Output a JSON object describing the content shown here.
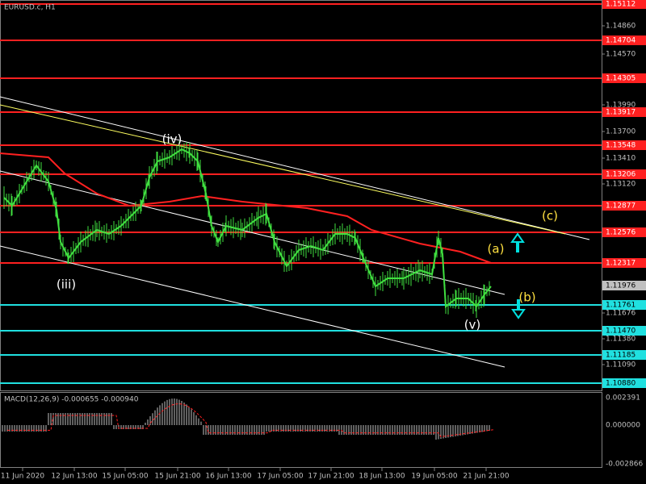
{
  "window_title": "EURUSD.c, H1",
  "price_axis_labels": [
    "1.14860",
    "1.14570",
    "1.13990",
    "1.13700",
    "1.13410",
    "1.13120",
    "1.11676",
    "1.11380",
    "1.11090"
  ],
  "current_price": "1.11976",
  "red_levels": [
    "1.15112",
    "1.14704",
    "1.14305",
    "1.13917",
    "1.13548",
    "1.13206",
    "1.12877",
    "1.12576",
    "1.12317"
  ],
  "cyan_levels": [
    "1.11761",
    "1.11470",
    "1.11185",
    "1.10880"
  ],
  "wave_labels": [
    "(iv)",
    "(iii)",
    "(v)",
    "(a)",
    "(b)",
    "(c)"
  ],
  "macd": {
    "label": "MACD(12,26,9) -0.000655 -0.000940",
    "axis_labels": [
      "0.002391",
      "0.000000",
      "-0.002866"
    ]
  },
  "time_labels": [
    "11 Jun 2020",
    "12 Jun 13:00",
    "15 Jun 05:00",
    "15 Jun 21:00",
    "16 Jun 13:00",
    "17 Jun 05:00",
    "17 Jun 21:00",
    "18 Jun 13:00",
    "19 Jun 05:00",
    "21 Jun 21:00"
  ]
}
